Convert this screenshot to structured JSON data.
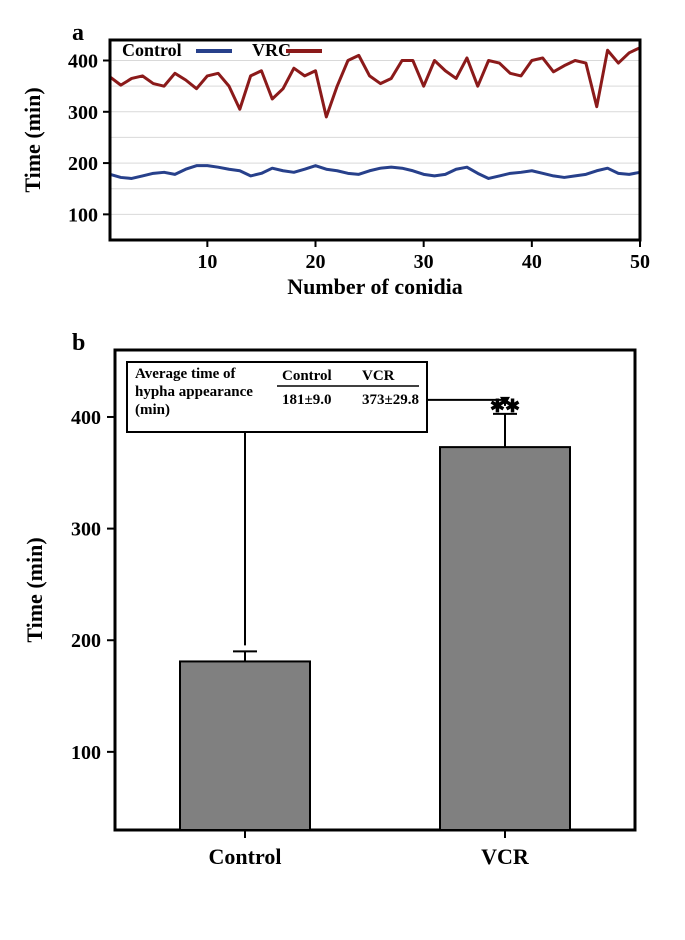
{
  "panel_a": {
    "label": "a",
    "type": "line",
    "xlabel": "Number of conidia",
    "ylabel": "Time (min)",
    "xlim": [
      1,
      50
    ],
    "ylim": [
      50,
      440
    ],
    "xticks": [
      10,
      20,
      30,
      40,
      50
    ],
    "yticks": [
      100,
      200,
      300,
      400
    ],
    "grid_color": "#d9d9d9",
    "border_color": "#000000",
    "border_width": 3,
    "label_fontsize": 22,
    "tick_fontsize": 20,
    "legend_fontsize": 18,
    "legend": {
      "items": [
        {
          "label": "Control",
          "color": "#27408b"
        },
        {
          "label": "VRC",
          "color": "#8b1a1a"
        }
      ],
      "position": "top-left"
    },
    "series": [
      {
        "name": "Control",
        "color": "#27408b",
        "line_width": 3,
        "values": [
          178,
          172,
          170,
          175,
          180,
          182,
          178,
          188,
          195,
          195,
          192,
          188,
          185,
          175,
          180,
          190,
          185,
          182,
          188,
          195,
          188,
          185,
          180,
          178,
          185,
          190,
          192,
          190,
          185,
          178,
          175,
          178,
          188,
          192,
          180,
          170,
          175,
          180,
          182,
          185,
          180,
          175,
          172,
          175,
          178,
          185,
          190,
          180,
          178,
          182
        ]
      },
      {
        "name": "VRC",
        "color": "#8b1a1a",
        "line_width": 3,
        "values": [
          368,
          352,
          365,
          370,
          355,
          350,
          375,
          362,
          345,
          370,
          375,
          350,
          305,
          370,
          380,
          325,
          345,
          385,
          370,
          380,
          290,
          350,
          400,
          410,
          370,
          355,
          365,
          400,
          400,
          350,
          400,
          380,
          365,
          405,
          350,
          400,
          395,
          375,
          370,
          400,
          405,
          378,
          390,
          400,
          395,
          310,
          420,
          395,
          415,
          425
        ]
      }
    ]
  },
  "panel_b": {
    "label": "b",
    "type": "bar",
    "xlabel_categories": [
      "Control",
      "VCR"
    ],
    "ylabel": "Time (min)",
    "ylim": [
      30,
      460
    ],
    "yticks": [
      100,
      200,
      300,
      400
    ],
    "border_color": "#000000",
    "border_width": 3,
    "label_fontsize": 22,
    "tick_fontsize": 20,
    "bar_color": "#808080",
    "bar_edge_color": "#000000",
    "bar_width_ratio": 0.5,
    "bars": [
      {
        "label": "Control",
        "value": 181,
        "error": 9.0
      },
      {
        "label": "VCR",
        "value": 373,
        "error": 29.8
      }
    ],
    "significance_marker": "✱✱",
    "inset_table": {
      "title_lines": [
        "Average time of",
        "hypha appearance",
        "(min)"
      ],
      "columns": [
        "Control",
        "VCR"
      ],
      "values": [
        "181±9.0",
        "373±29.8"
      ],
      "fontsize": 15,
      "border_color": "#000000"
    }
  },
  "colors": {
    "background": "#ffffff"
  }
}
